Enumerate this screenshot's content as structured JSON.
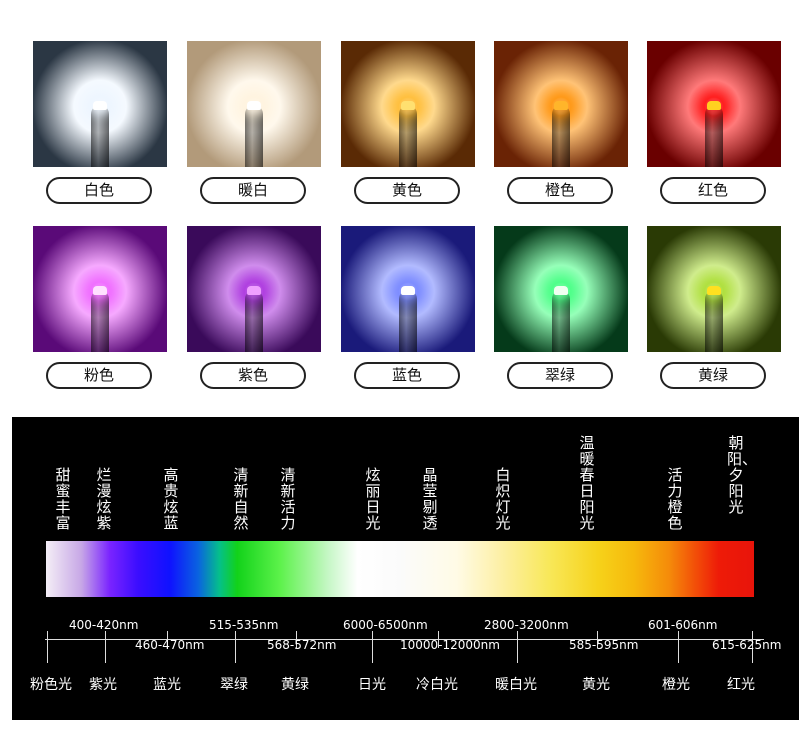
{
  "swatches": [
    {
      "label": "白色",
      "glow": "#eef6ff",
      "bg": "#2b3744",
      "chip": "#ffffff"
    },
    {
      "label": "暖白",
      "glow": "#fff4e0",
      "bg": "#b29a7a",
      "chip": "#ffffff"
    },
    {
      "label": "黄色",
      "glow": "#ffc040",
      "bg": "#5a2a05",
      "chip": "#ffe070"
    },
    {
      "label": "橙色",
      "glow": "#ff9a1a",
      "bg": "#6a2305",
      "chip": "#ffb52a"
    },
    {
      "label": "红色",
      "glow": "#ff2020",
      "bg": "#6a0000",
      "chip": "#ffd020"
    },
    {
      "label": "粉色",
      "glow": "#f070ff",
      "bg": "#5a0a78",
      "chip": "#ffe0ff"
    },
    {
      "label": "紫色",
      "glow": "#b040e0",
      "bg": "#3a0a5a",
      "chip": "#f0a0ff"
    },
    {
      "label": "蓝色",
      "glow": "#7e8dff",
      "bg": "#1a1a7a",
      "chip": "#ffffff"
    },
    {
      "label": "翠绿",
      "glow": "#50ff8a",
      "bg": "#053a1a",
      "chip": "#f0fff0"
    },
    {
      "label": "黄绿",
      "glow": "#b0e040",
      "bg": "#2a3a05",
      "chip": "#ffe020"
    }
  ],
  "spectrum": {
    "descriptors": [
      "甜蜜丰富",
      "烂漫炫紫",
      "高贵炫蓝",
      "清新自然",
      "清新活力",
      "炫丽日光",
      "晶莹剔透",
      "白炽灯光",
      "温暖春日阳光",
      "活力橙色",
      "朝阳、夕阳光"
    ],
    "ranges_top": [
      "400-420nm",
      "515-535nm",
      "6000-6500nm",
      "2800-3200nm",
      "601-606nm"
    ],
    "ranges_bottom": [
      "460-470nm",
      "568-572nm",
      "10000-12000nm",
      "585-595nm",
      "615-625nm"
    ],
    "colors": [
      "粉色光",
      "紫光",
      "蓝光",
      "翠绿",
      "黄绿",
      "日光",
      "冷白光",
      "暖白光",
      "黄光",
      "橙光",
      "红光"
    ]
  }
}
